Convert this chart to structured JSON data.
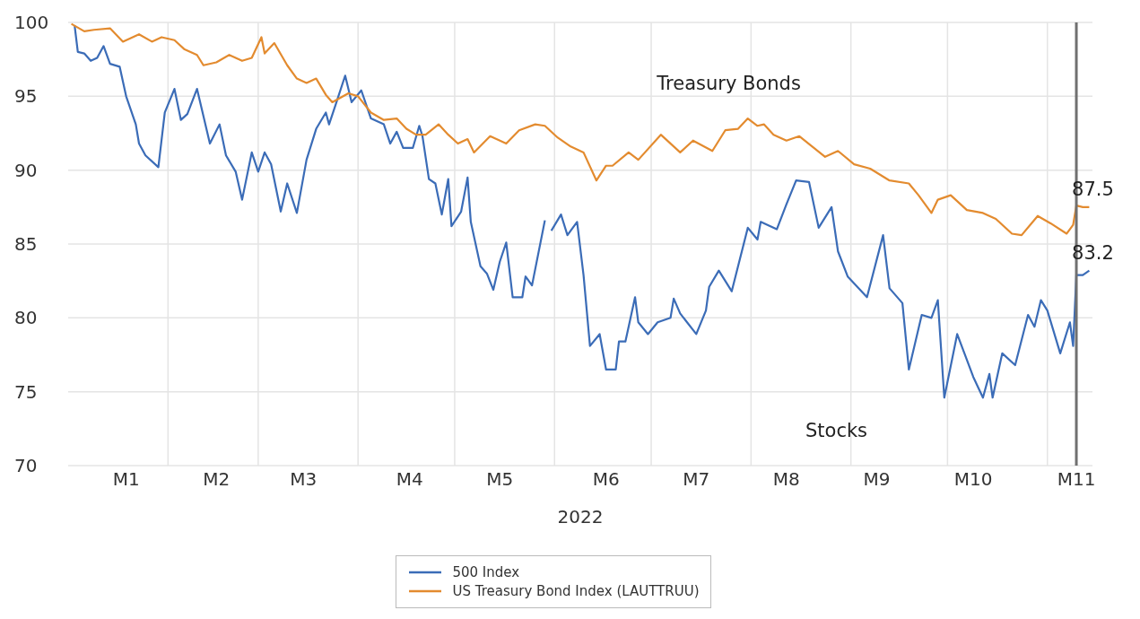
{
  "chart_data": {
    "type": "line",
    "xlabel": "2022",
    "xlim": [
      "2022-01-01",
      "2022-11-15"
    ],
    "ylim": [
      70,
      100
    ],
    "yticks": [
      70,
      75,
      80,
      85,
      90,
      95,
      100
    ],
    "xticks": [
      {
        "value": "2022-01-19",
        "label": "M1"
      },
      {
        "value": "2022-02-01",
        "label": null
      },
      {
        "value": "2022-02-16",
        "label": "M2"
      },
      {
        "value": "2022-03-01",
        "label": null
      },
      {
        "value": "2022-03-15",
        "label": "M3"
      },
      {
        "value": "2022-04-01",
        "label": null
      },
      {
        "value": "2022-04-17",
        "label": "M4"
      },
      {
        "value": "2022-05-01",
        "label": null
      },
      {
        "value": "2022-05-15",
        "label": "M5"
      },
      {
        "value": "2022-06-01",
        "label": null
      },
      {
        "value": "2022-06-17",
        "label": "M6"
      },
      {
        "value": "2022-07-01",
        "label": null
      },
      {
        "value": "2022-07-15",
        "label": "M7"
      },
      {
        "value": "2022-08-01",
        "label": null
      },
      {
        "value": "2022-08-12",
        "label": "M8"
      },
      {
        "value": "2022-09-01",
        "label": null
      },
      {
        "value": "2022-09-09",
        "label": "M9"
      },
      {
        "value": "2022-10-01",
        "label": null
      },
      {
        "value": "2022-10-09",
        "label": "M10"
      },
      {
        "value": "2022-11-01",
        "label": null
      },
      {
        "value": "2022-11-10",
        "label": "M11"
      }
    ],
    "grid": true,
    "legend": "bottom",
    "line_style": "solid",
    "marker": "none",
    "series": [
      {
        "name": "500 Index",
        "color": "#3b6cb7",
        "x": [
          "2022-01-03",
          "2022-01-04",
          "2022-01-06",
          "2022-01-08",
          "2022-01-10",
          "2022-01-12",
          "2022-01-14",
          "2022-01-17",
          "2022-01-19",
          "2022-01-22",
          "2022-01-23",
          "2022-01-25",
          "2022-01-29",
          "2022-01-31",
          "2022-02-03",
          "2022-02-05",
          "2022-02-07",
          "2022-02-10",
          "2022-02-14",
          "2022-02-17",
          "2022-02-19",
          "2022-02-22",
          "2022-02-24",
          "2022-02-27",
          "2022-03-01",
          "2022-03-03",
          "2022-03-05",
          "2022-03-08",
          "2022-03-10",
          "2022-03-13",
          "2022-03-16",
          "2022-03-19",
          "2022-03-22",
          "2022-03-23",
          "2022-03-25",
          "2022-03-28",
          "2022-03-30",
          "2022-04-02",
          "2022-04-05",
          "2022-04-09",
          "2022-04-11",
          "2022-04-13",
          "2022-04-15",
          "2022-04-18",
          "2022-04-20",
          "2022-04-21",
          "2022-04-23",
          "2022-04-25",
          "2022-04-27",
          "2022-04-29",
          "2022-04-30",
          "2022-05-03",
          "2022-05-05",
          "2022-05-06",
          "2022-05-09",
          "2022-05-11",
          "2022-05-13",
          "2022-05-15",
          "2022-05-17",
          "2022-05-19",
          "2022-05-22",
          "2022-05-23",
          "2022-05-25",
          "2022-05-29",
          "2022-05-30",
          "2022-05-31",
          "2022-06-03",
          "2022-06-05",
          "2022-06-08",
          "2022-06-10",
          "2022-06-12",
          "2022-06-15",
          "2022-06-17",
          "2022-06-20",
          "2022-06-21",
          "2022-06-23",
          "2022-06-26",
          "2022-06-27",
          "2022-06-30",
          "2022-07-03",
          "2022-07-07",
          "2022-07-08",
          "2022-07-10",
          "2022-07-15",
          "2022-07-18",
          "2022-07-19",
          "2022-07-22",
          "2022-07-26",
          "2022-07-31",
          "2022-08-03",
          "2022-08-04",
          "2022-08-09",
          "2022-08-12",
          "2022-08-15",
          "2022-08-19",
          "2022-08-22",
          "2022-08-26",
          "2022-08-28",
          "2022-08-31",
          "2022-09-06",
          "2022-09-11",
          "2022-09-13",
          "2022-09-17",
          "2022-09-19",
          "2022-09-23",
          "2022-09-26",
          "2022-09-28",
          "2022-09-30",
          "2022-10-04",
          "2022-10-09",
          "2022-10-12",
          "2022-10-14",
          "2022-10-15",
          "2022-10-18",
          "2022-10-22",
          "2022-10-26",
          "2022-10-28",
          "2022-10-30",
          "2022-11-01",
          "2022-11-05",
          "2022-11-08",
          "2022-11-09",
          "2022-11-10",
          "2022-11-12",
          "2022-11-14"
        ],
        "values": [
          99.8,
          98.0,
          97.9,
          97.4,
          97.6,
          98.4,
          97.2,
          97.0,
          95.0,
          93.1,
          91.8,
          91.0,
          90.2,
          93.9,
          95.5,
          93.4,
          93.8,
          95.5,
          91.8,
          93.1,
          91.0,
          89.9,
          88.0,
          91.2,
          89.9,
          91.2,
          90.4,
          87.2,
          89.1,
          87.1,
          90.7,
          92.8,
          93.9,
          93.1,
          94.4,
          96.4,
          94.6,
          95.4,
          93.5,
          93.1,
          91.8,
          92.6,
          91.5,
          91.5,
          93.0,
          92.3,
          89.4,
          89.1,
          87.0,
          89.4,
          86.2,
          87.2,
          89.5,
          86.5,
          83.5,
          83.0,
          81.9,
          83.8,
          85.1,
          81.4,
          81.4,
          82.8,
          82.2,
          86.6,
          null,
          85.9,
          87.0,
          85.6,
          86.5,
          82.9,
          78.1,
          78.9,
          76.5,
          76.5,
          78.4,
          78.4,
          81.4,
          79.7,
          78.9,
          79.7,
          80.0,
          81.3,
          80.3,
          78.9,
          80.5,
          82.1,
          83.2,
          81.8,
          86.1,
          85.3,
          86.5,
          86.0,
          87.7,
          89.3,
          89.2,
          86.1,
          87.5,
          84.5,
          82.8,
          81.4,
          85.6,
          82.0,
          81.0,
          76.5,
          80.2,
          80.0,
          81.2,
          74.6,
          78.9,
          76.0,
          74.6,
          76.2,
          74.6,
          77.6,
          76.8,
          80.2,
          79.4,
          81.2,
          80.5,
          77.6,
          79.7,
          78.1,
          82.9,
          82.9,
          83.2
        ]
      },
      {
        "name": "US Treasury Bond Index (LAUTTRUU)",
        "color": "#e38b2f",
        "x": [
          "2022-01-02",
          "2022-01-06",
          "2022-01-09",
          "2022-01-14",
          "2022-01-18",
          "2022-01-23",
          "2022-01-27",
          "2022-01-30",
          "2022-02-03",
          "2022-02-06",
          "2022-02-10",
          "2022-02-12",
          "2022-02-16",
          "2022-02-20",
          "2022-02-24",
          "2022-02-27",
          "2022-03-02",
          "2022-03-03",
          "2022-03-06",
          "2022-03-10",
          "2022-03-13",
          "2022-03-16",
          "2022-03-19",
          "2022-03-22",
          "2022-03-24",
          "2022-03-29",
          "2022-04-01",
          "2022-04-05",
          "2022-04-09",
          "2022-04-13",
          "2022-04-16",
          "2022-04-19",
          "2022-04-22",
          "2022-04-26",
          "2022-04-29",
          "2022-05-02",
          "2022-05-05",
          "2022-05-07",
          "2022-05-12",
          "2022-05-17",
          "2022-05-21",
          "2022-05-26",
          "2022-05-29",
          "2022-06-02",
          "2022-06-06",
          "2022-06-10",
          "2022-06-14",
          "2022-06-17",
          "2022-06-19",
          "2022-06-24",
          "2022-06-27",
          "2022-07-04",
          "2022-07-10",
          "2022-07-14",
          "2022-07-20",
          "2022-07-24",
          "2022-07-28",
          "2022-07-31",
          "2022-08-03",
          "2022-08-05",
          "2022-08-08",
          "2022-08-12",
          "2022-08-16",
          "2022-08-20",
          "2022-08-24",
          "2022-08-28",
          "2022-09-02",
          "2022-09-07",
          "2022-09-13",
          "2022-09-19",
          "2022-09-22",
          "2022-09-26",
          "2022-09-28",
          "2022-10-02",
          "2022-10-07",
          "2022-10-12",
          "2022-10-16",
          "2022-10-21",
          "2022-10-24",
          "2022-10-29",
          "2022-11-02",
          "2022-11-07",
          "2022-11-09",
          "2022-11-10",
          "2022-11-12",
          "2022-11-14"
        ],
        "values": [
          99.9,
          99.4,
          99.5,
          99.6,
          98.7,
          99.2,
          98.7,
          99.0,
          98.8,
          98.2,
          97.8,
          97.1,
          97.3,
          97.8,
          97.4,
          97.6,
          99.0,
          97.9,
          98.6,
          97.1,
          96.2,
          95.9,
          96.2,
          95.1,
          94.6,
          95.2,
          95.0,
          93.9,
          93.4,
          93.5,
          92.8,
          92.4,
          92.4,
          93.1,
          92.4,
          91.8,
          92.1,
          91.2,
          92.3,
          91.8,
          92.7,
          93.1,
          93.0,
          92.2,
          91.6,
          91.2,
          89.3,
          90.3,
          90.3,
          91.2,
          90.7,
          92.4,
          91.2,
          92.0,
          91.3,
          92.7,
          92.8,
          93.5,
          93.0,
          93.1,
          92.4,
          92.0,
          92.3,
          91.6,
          90.9,
          91.3,
          90.4,
          90.1,
          89.3,
          89.1,
          88.3,
          87.1,
          88.0,
          88.3,
          87.3,
          87.1,
          86.7,
          85.7,
          85.6,
          86.9,
          86.4,
          85.7,
          86.3,
          87.6,
          87.5,
          87.5
        ]
      }
    ],
    "ref_lines": [
      {
        "axis": "x",
        "value": "2022-11-10",
        "color": "#707070"
      }
    ],
    "annotations": [
      "Treasury Bonds",
      "Stocks",
      {
        "text": "87.5",
        "x": "2022-11-14",
        "y": 87.5
      },
      {
        "text": "83.2",
        "x": "2022-11-14",
        "y": 83.2
      }
    ]
  }
}
